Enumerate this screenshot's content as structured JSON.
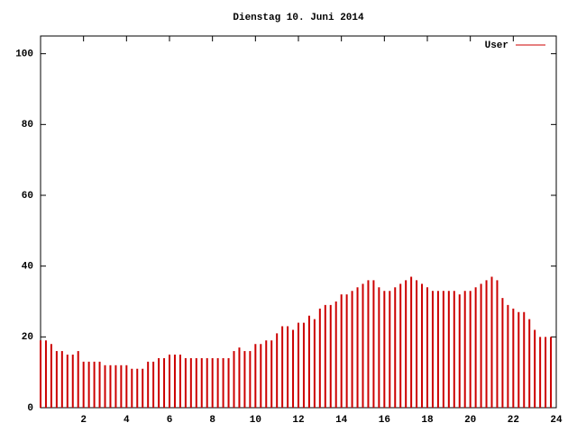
{
  "chart_data": {
    "type": "impulses",
    "title": "Dienstag 10. Juni 2014",
    "x": [
      0,
      0.25,
      0.5,
      0.75,
      1,
      1.25,
      1.5,
      1.75,
      2,
      2.25,
      2.5,
      2.75,
      3,
      3.25,
      3.5,
      3.75,
      4,
      4.25,
      4.5,
      4.75,
      5,
      5.25,
      5.5,
      5.75,
      6,
      6.25,
      6.5,
      6.75,
      7,
      7.25,
      7.5,
      7.75,
      8,
      8.25,
      8.5,
      8.75,
      9,
      9.25,
      9.5,
      9.75,
      10,
      10.25,
      10.5,
      10.75,
      11,
      11.25,
      11.5,
      11.75,
      12,
      12.25,
      12.5,
      12.75,
      13,
      13.25,
      13.5,
      13.75,
      14,
      14.25,
      14.5,
      14.75,
      15,
      15.25,
      15.5,
      15.75,
      16,
      16.25,
      16.5,
      16.75,
      17,
      17.25,
      17.5,
      17.75,
      18,
      18.25,
      18.5,
      18.75,
      19,
      19.25,
      19.5,
      19.75,
      20,
      20.25,
      20.5,
      20.75,
      21,
      21.25,
      21.5,
      21.75,
      22,
      22.25,
      22.5,
      22.75,
      23,
      23.25,
      23.5,
      23.75
    ],
    "series": [
      {
        "name": "User",
        "color": "#cc0000",
        "values": [
          19,
          19,
          18,
          16,
          16,
          15,
          15,
          16,
          13,
          13,
          13,
          13,
          12,
          12,
          12,
          12,
          12,
          11,
          11,
          11,
          13,
          13,
          14,
          14,
          15,
          15,
          15,
          14,
          14,
          14,
          14,
          14,
          14,
          14,
          14,
          14,
          16,
          17,
          16,
          16,
          18,
          18,
          19,
          19,
          21,
          23,
          23,
          22,
          24,
          24,
          26,
          25,
          28,
          29,
          29,
          30,
          32,
          32,
          33,
          34,
          35,
          36,
          36,
          34,
          33,
          33,
          34,
          35,
          36,
          37,
          36,
          35,
          34,
          33,
          33,
          33,
          33,
          33,
          32,
          33,
          33,
          34,
          35,
          36,
          37,
          36,
          31,
          29,
          28,
          27,
          27,
          25,
          22,
          20,
          20,
          20
        ]
      }
    ],
    "xlim": [
      0,
      24
    ],
    "xticks": [
      2,
      4,
      6,
      8,
      10,
      12,
      14,
      16,
      18,
      20,
      22,
      24
    ],
    "ylim": [
      0,
      105
    ],
    "yticks": [
      0,
      20,
      40,
      60,
      80,
      100
    ],
    "legend": "top-right"
  }
}
